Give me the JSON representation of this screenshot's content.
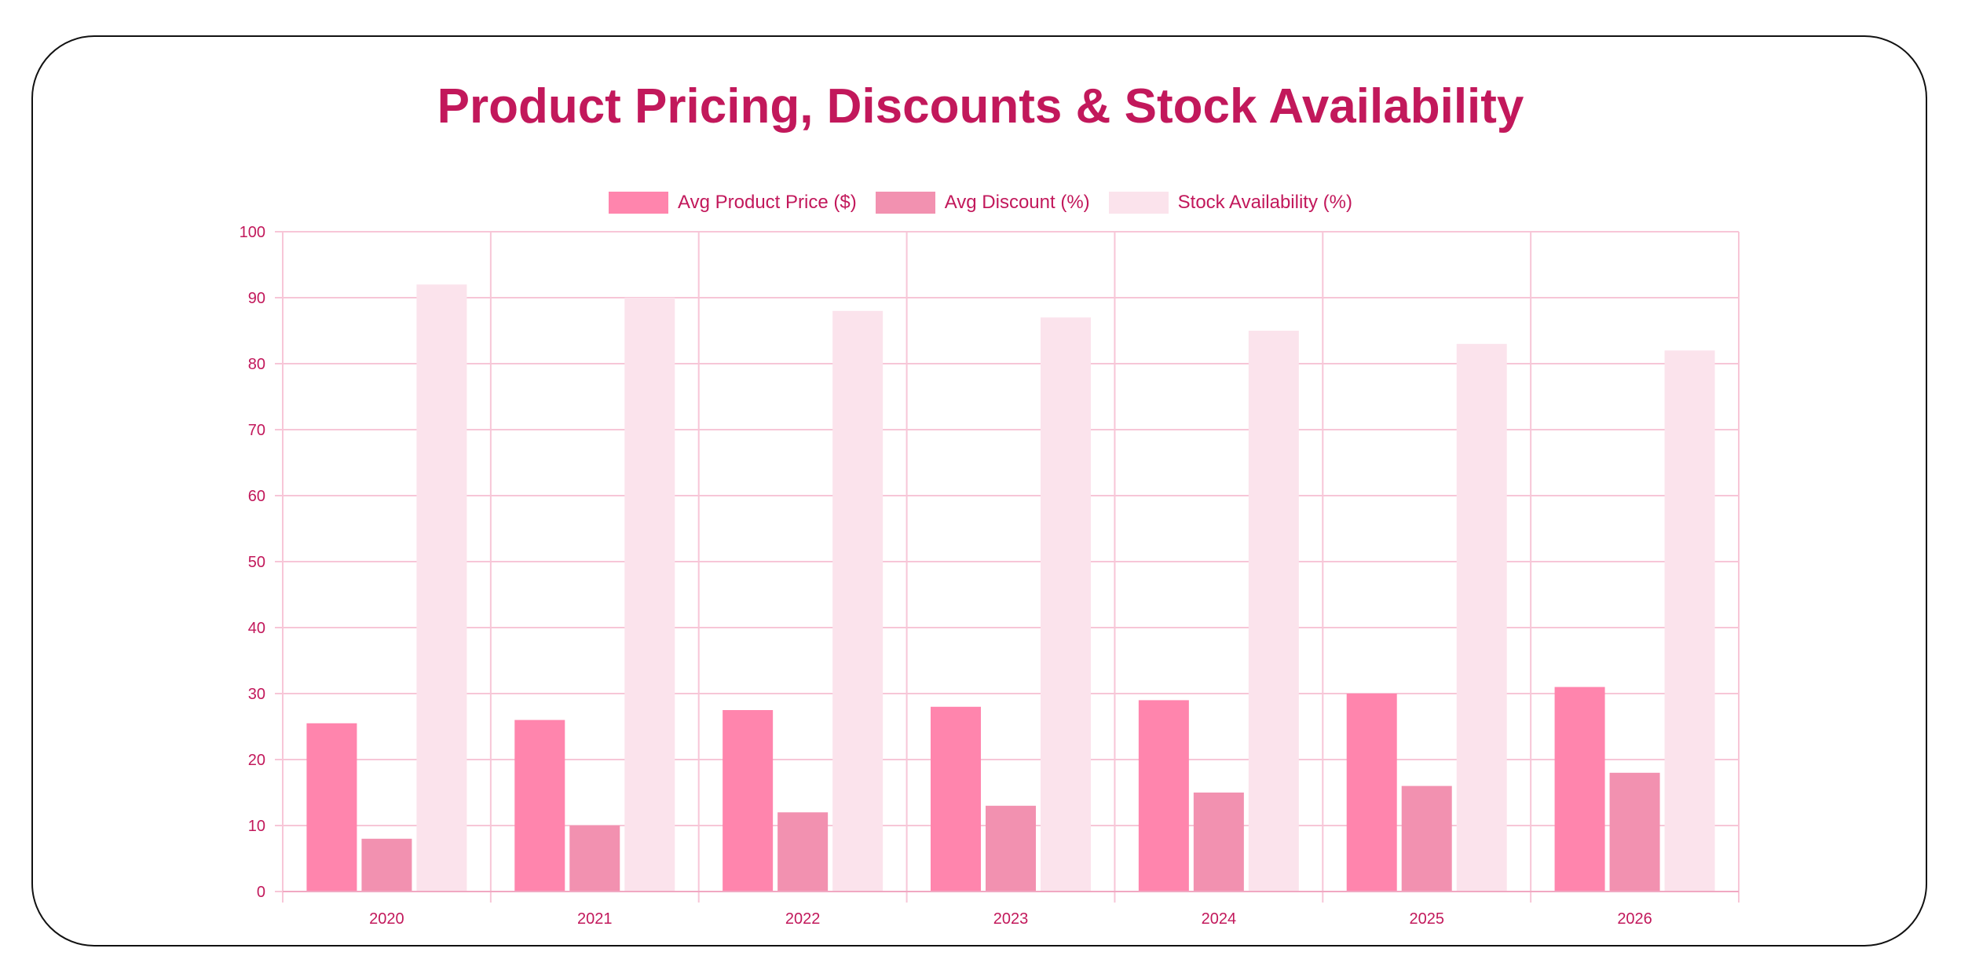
{
  "chart_data": {
    "type": "bar",
    "title": "Product Pricing, Discounts & Stock Availability",
    "categories": [
      "2020",
      "2021",
      "2022",
      "2023",
      "2024",
      "2025",
      "2026"
    ],
    "series": [
      {
        "name": "Avg Product Price ($)",
        "color": "#ff85ad",
        "values": [
          25.5,
          26,
          27.5,
          28,
          29,
          30,
          31
        ]
      },
      {
        "name": "Avg Discount (%)",
        "color": "#f291b0",
        "values": [
          8,
          10,
          12,
          13,
          15,
          16,
          18
        ]
      },
      {
        "name": "Stock Availability (%)",
        "color": "#fbe3ec",
        "values": [
          92,
          90,
          88,
          87,
          85,
          83,
          82
        ]
      }
    ],
    "ylim": [
      0,
      100
    ],
    "yticks": [
      "0",
      "10",
      "20",
      "30",
      "40",
      "50",
      "60",
      "70",
      "80",
      "90",
      "100"
    ],
    "grid": true,
    "legend": "top",
    "xlabel": "",
    "ylabel": ""
  }
}
